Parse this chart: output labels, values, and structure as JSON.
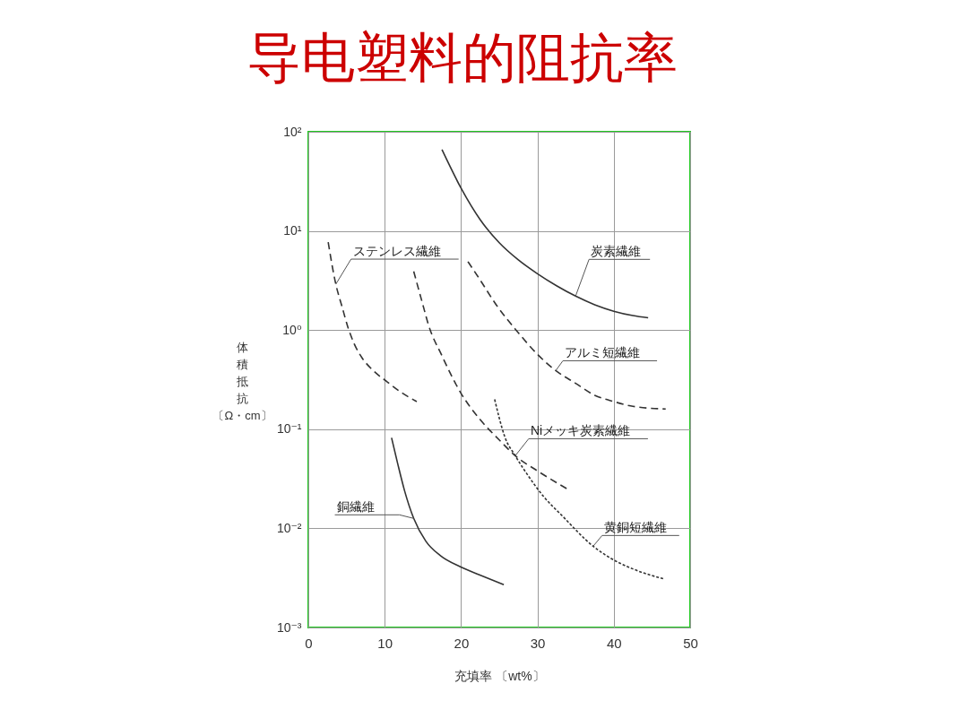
{
  "chart_data": {
    "type": "line",
    "title": "导电塑料的阻抗率",
    "xlabel": "充填率 〔wt%〕",
    "ylabel": "体積抵抗〔Ω・cm〕",
    "log": "y",
    "grid": true,
    "xlim": [
      0,
      50
    ],
    "xticks": [
      0,
      10,
      20,
      30,
      40,
      50
    ],
    "ylim": [
      0.001,
      100
    ],
    "yticks": [
      {
        "value": 0.001,
        "label": "10⁻³"
      },
      {
        "value": 0.01,
        "label": "10⁻²"
      },
      {
        "value": 0.1,
        "label": "10⁻¹"
      },
      {
        "value": 1,
        "label": "10⁰"
      },
      {
        "value": 10,
        "label": "10¹"
      },
      {
        "value": 100,
        "label": "10²"
      }
    ],
    "series": [
      {
        "name": "炭素繊維",
        "color": "#333333",
        "line_style": "solid",
        "x": [
          17.5,
          20,
          22.5,
          25,
          27.5,
          30,
          32.5,
          35,
          37.5,
          40,
          42.5,
          44.5
        ],
        "values": [
          66,
          27,
          13,
          7.6,
          5.1,
          3.7,
          2.8,
          2.2,
          1.8,
          1.55,
          1.4,
          1.33
        ]
      },
      {
        "name": "ステンレス繊維",
        "color": "#333333",
        "line_style": "dashed",
        "x": [
          2.6,
          3.6,
          4.4,
          5.2,
          6,
          7,
          8.5,
          10.1,
          12,
          14.2
        ],
        "values": [
          7.7,
          2.9,
          1.74,
          1.06,
          0.73,
          0.53,
          0.39,
          0.31,
          0.24,
          0.19
        ]
      },
      {
        "name": "アルミ短繊維",
        "color": "#333333",
        "line_style": "dashed",
        "x": [
          20.9,
          22.5,
          24.6,
          27.3,
          30,
          32.4,
          35,
          37.5,
          40,
          42.5,
          46.8
        ],
        "values": [
          4.9,
          3.2,
          1.8,
          0.98,
          0.57,
          0.39,
          0.29,
          0.22,
          0.19,
          0.17,
          0.16
        ]
      },
      {
        "name": "Niメッキ炭素繊維",
        "color": "#333333",
        "line_style": "dashed",
        "x": [
          13.8,
          15,
          15.7,
          17.5,
          20,
          22.5,
          25,
          27.1,
          30,
          33.9
        ],
        "values": [
          3.9,
          1.8,
          1.15,
          0.55,
          0.23,
          0.125,
          0.078,
          0.054,
          0.038,
          0.025
        ]
      },
      {
        "name": "黄銅短繊維",
        "color": "#333333",
        "line_style": "dotted",
        "x": [
          24.4,
          25,
          25.7,
          27.1,
          28.9,
          30.8,
          33.2,
          37.3,
          39.4,
          42.5,
          46.5
        ],
        "values": [
          0.2,
          0.13,
          0.085,
          0.054,
          0.033,
          0.021,
          0.0135,
          0.0066,
          0.0051,
          0.0039,
          0.0031
        ]
      },
      {
        "name": "銅繊維",
        "color": "#333333",
        "line_style": "solid",
        "x": [
          10.9,
          11.7,
          12.6,
          13.8,
          15.4,
          17.3,
          19.9,
          22.4,
          25.6
        ],
        "values": [
          0.082,
          0.045,
          0.024,
          0.0126,
          0.0074,
          0.0053,
          0.0041,
          0.0034,
          0.0027
        ]
      }
    ]
  }
}
